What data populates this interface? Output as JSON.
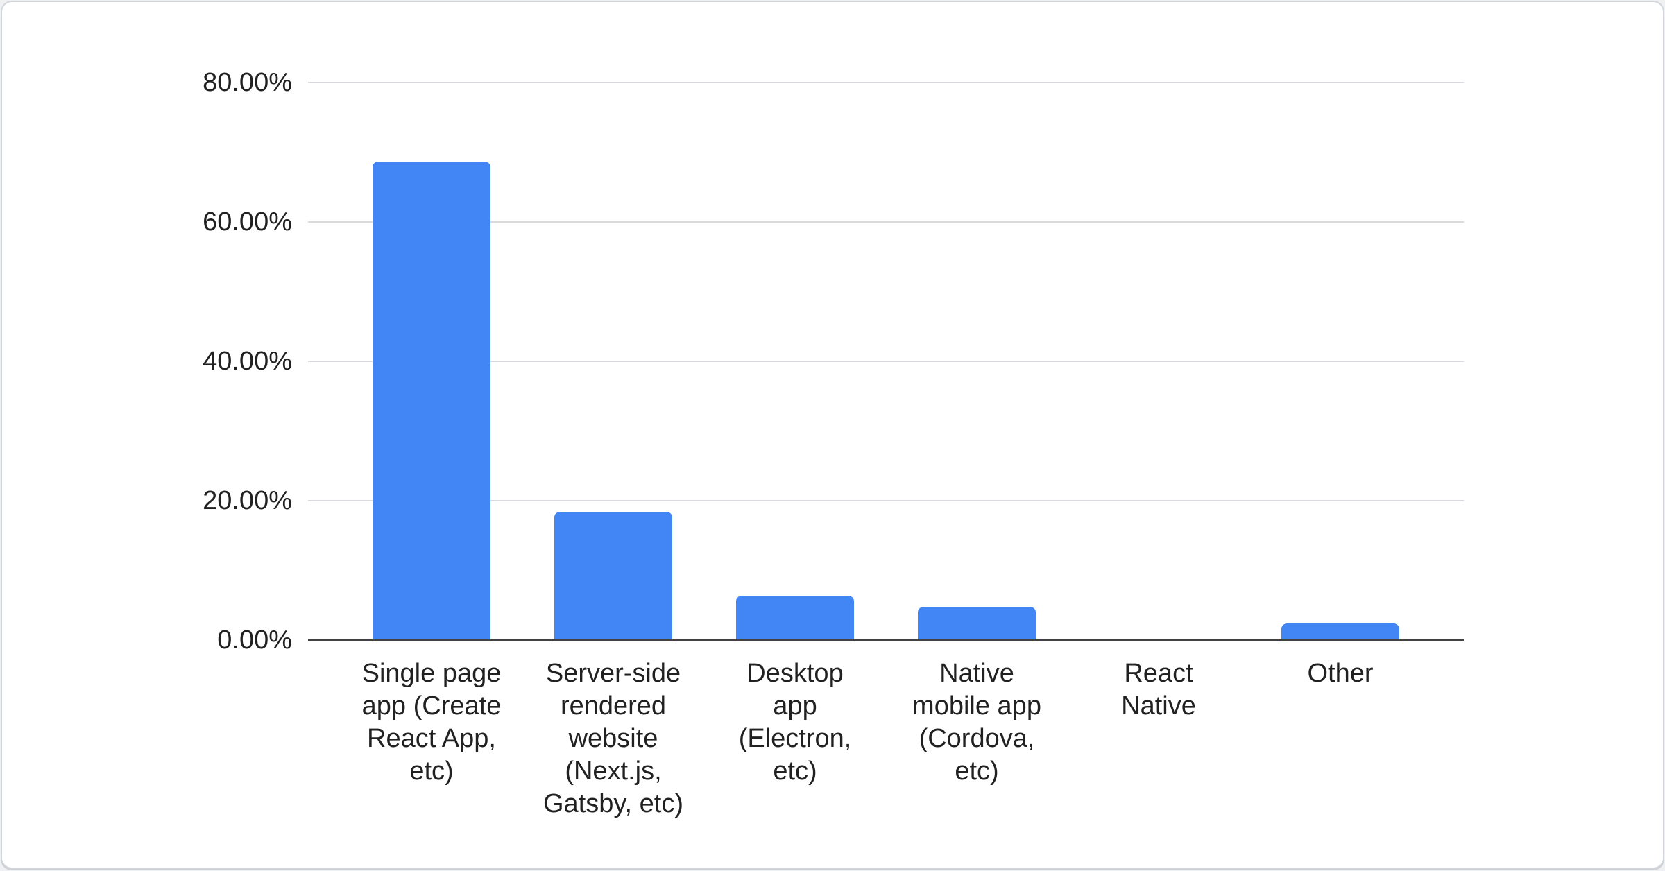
{
  "page": {
    "background": "#eef0f2"
  },
  "card": {
    "background": "#ffffff",
    "border_color": "#d2d6db"
  },
  "chart_data": {
    "type": "bar",
    "title": "",
    "subtitle": "",
    "xlabel": "",
    "ylabel": "",
    "legend": "none",
    "grid": true,
    "ylim": [
      0,
      80
    ],
    "categories": [
      "Single page\napp (Create\nReact App,\netc)",
      "Server-side\nrendered\nwebsite\n(Next.js,\nGatsby, etc)",
      "Desktop\napp\n(Electron,\netc)",
      "Native\nmobile app\n(Cordova,\netc)",
      "React\nNative",
      "Other"
    ],
    "values": [
      68.7,
      18.4,
      6.4,
      4.8,
      0.1,
      2.4
    ],
    "y_ticks": [
      {
        "label": "80.00%",
        "value": 80
      },
      {
        "label": "60.00%",
        "value": 60
      },
      {
        "label": "40.00%",
        "value": 40
      },
      {
        "label": "20.00%",
        "value": 20
      },
      {
        "label": "0.00%",
        "value": 0
      }
    ],
    "bar_color": "#4285f4",
    "axis_line_color": "#424242",
    "gridline_color": "#d9dadd",
    "label_color": "#212121"
  }
}
